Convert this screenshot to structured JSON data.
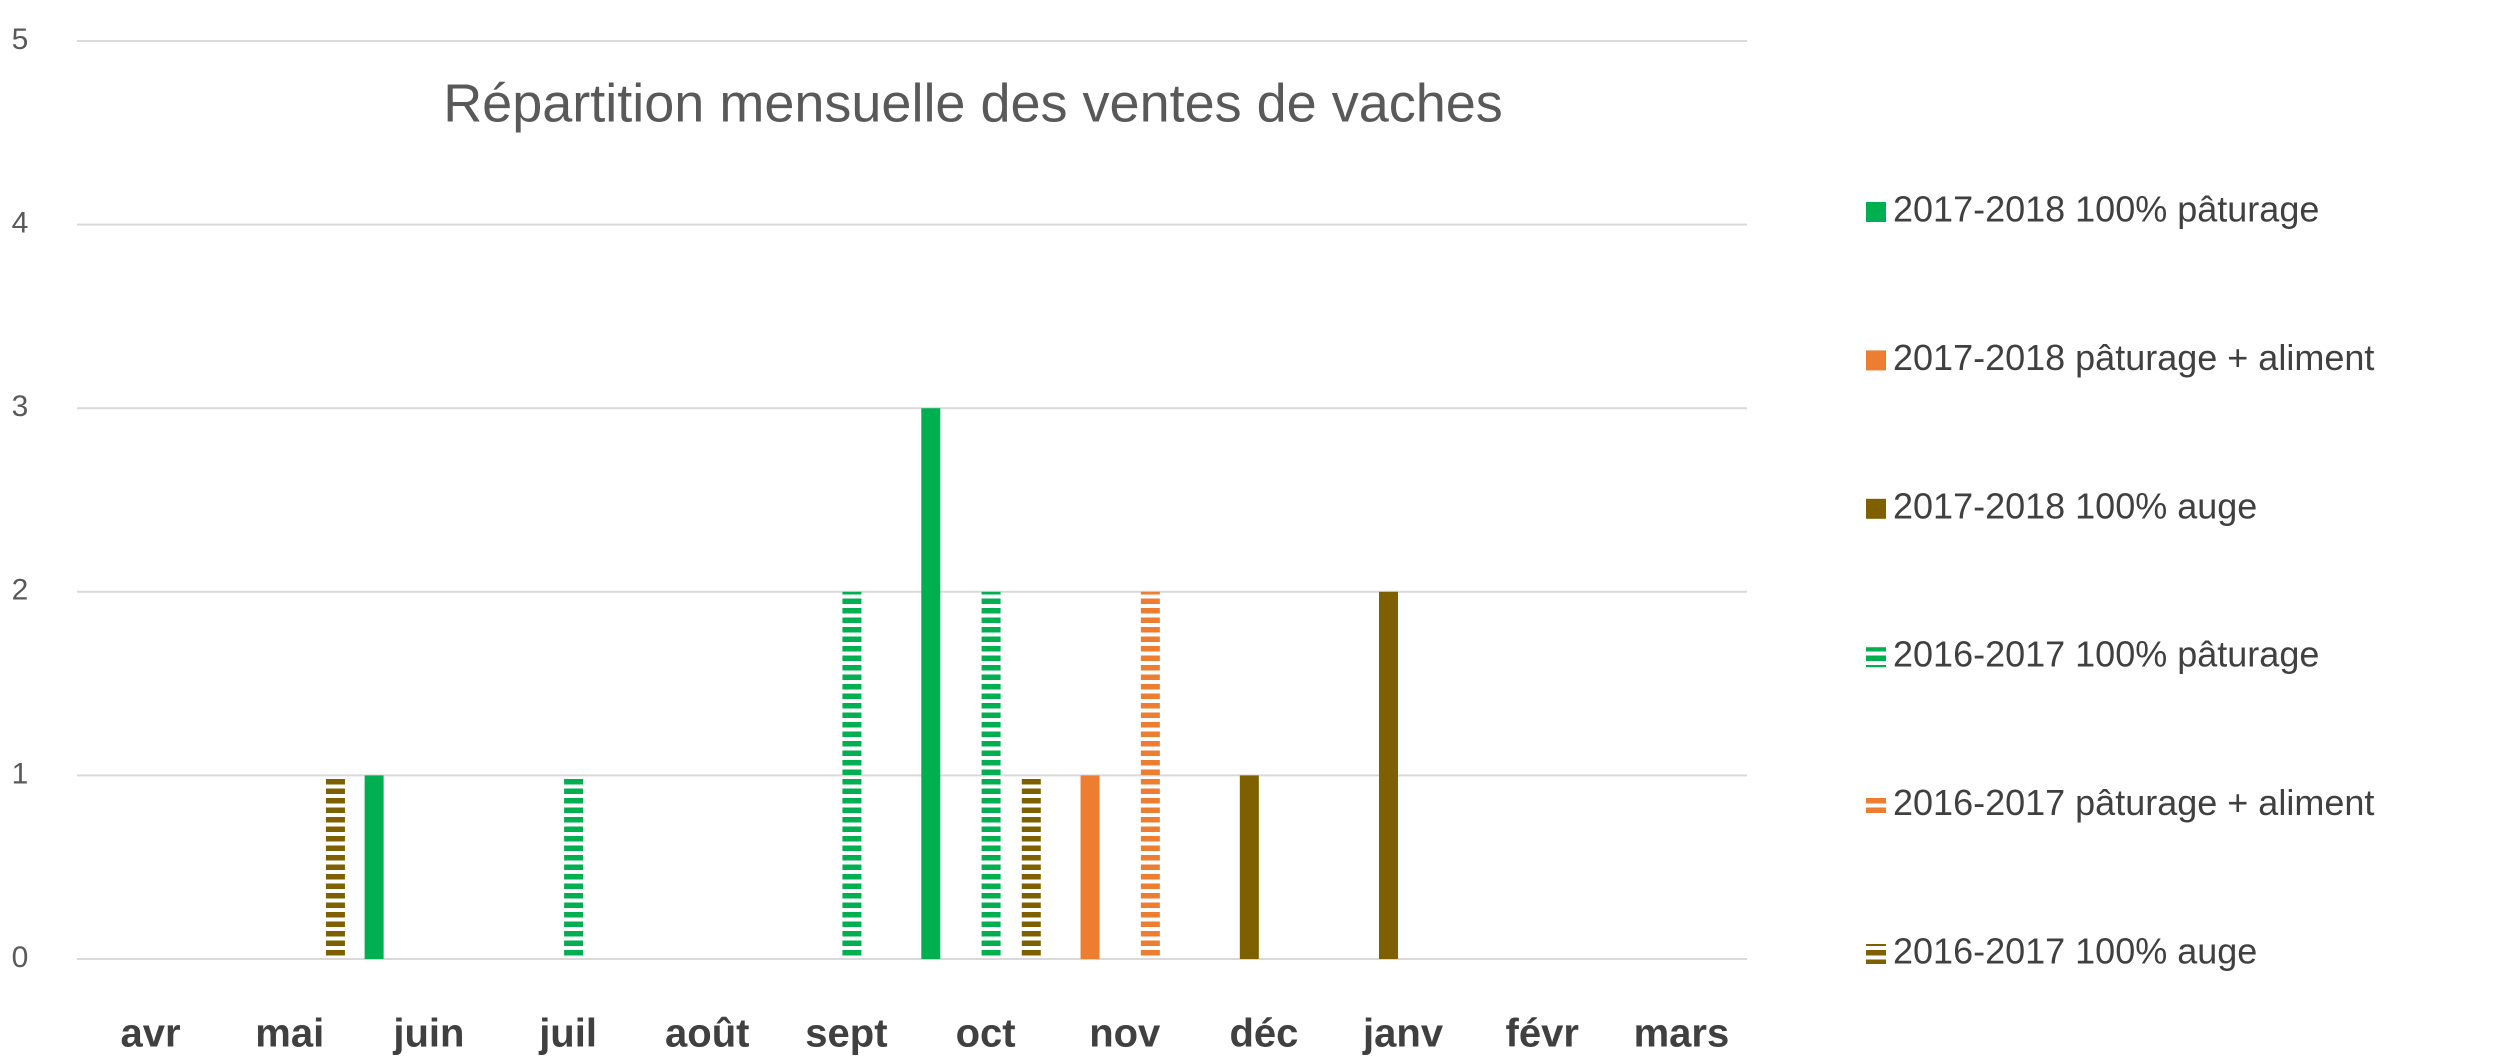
{
  "chart_data": {
    "type": "bar",
    "title": "Répartition mensuelle des ventes de vaches",
    "categories": [
      "avr",
      "mai",
      "juin",
      "juil",
      "août",
      "sept",
      "oct",
      "nov",
      "déc",
      "janv",
      "févr",
      "mars"
    ],
    "series": [
      {
        "name": "2017-2018 100% pâturage",
        "color": "#00b050",
        "hatch": false,
        "values": [
          0,
          0,
          1,
          0,
          0,
          0,
          3,
          0,
          0,
          0,
          0,
          0
        ]
      },
      {
        "name": "2017-2018 pâturage + aliment",
        "color": "#ed7d31",
        "hatch": false,
        "values": [
          0,
          0,
          0,
          0,
          0,
          0,
          0,
          1,
          0,
          0,
          0,
          0
        ]
      },
      {
        "name": "2017-2018 100% auge",
        "color": "#7f6000",
        "hatch": false,
        "values": [
          0,
          0,
          0,
          0,
          0,
          0,
          0,
          0,
          1,
          2,
          0,
          0
        ]
      },
      {
        "name": "2016-2017 100% pâturage",
        "color": "#00b050",
        "hatch": true,
        "values": [
          0,
          0,
          0,
          1,
          0,
          2,
          2,
          0,
          0,
          0,
          0,
          0
        ]
      },
      {
        "name": "2016-2017 pâturage + aliment",
        "color": "#ed7d31",
        "hatch": true,
        "values": [
          0,
          0,
          0,
          0,
          0,
          0,
          0,
          2,
          0,
          0,
          0,
          0
        ]
      },
      {
        "name": "2016-2017 100% auge",
        "color": "#7f6000",
        "hatch": true,
        "values": [
          0,
          1,
          0,
          0,
          0,
          0,
          1,
          0,
          0,
          0,
          0,
          0
        ]
      }
    ],
    "ylim": [
      0,
      5
    ],
    "yticks": [
      0,
      1,
      2,
      3,
      4,
      5
    ],
    "grid": true,
    "legend": "right"
  }
}
